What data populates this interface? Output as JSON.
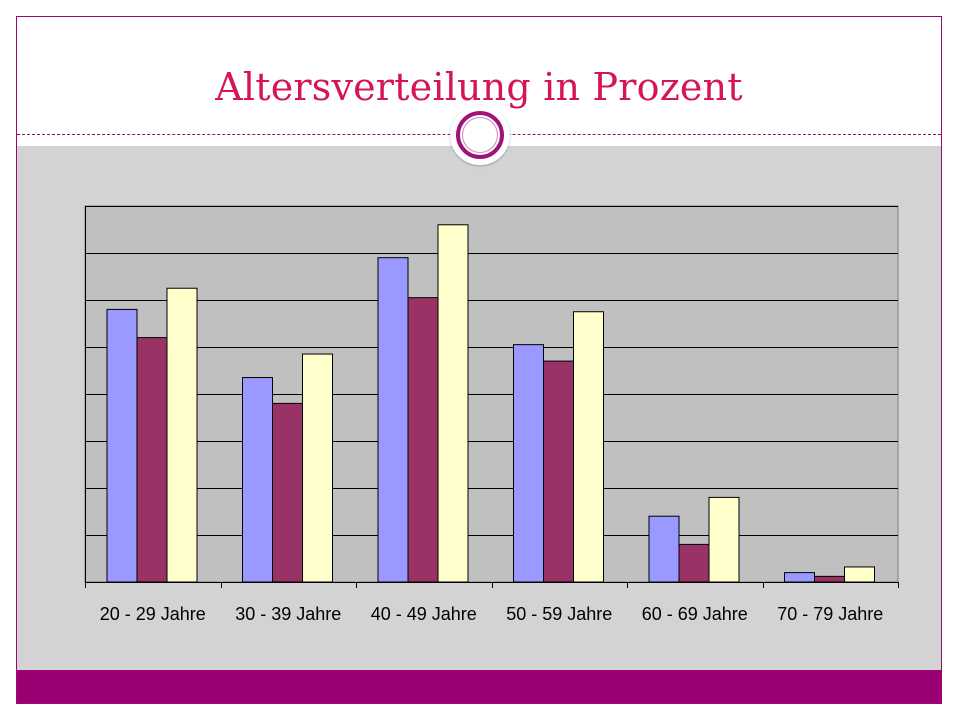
{
  "slide": {
    "title": "Altersverteilung in Prozent",
    "accent_color": "#9b0072",
    "title_color": "#d6145a"
  },
  "chart_data": {
    "type": "bar",
    "title": "",
    "xlabel": "",
    "ylabel": "",
    "categories": [
      "20 - 29 Jahre",
      "30 - 39 Jahre",
      "40 - 49 Jahre",
      "50 - 59 Jahre",
      "60 - 69 Jahre",
      "70 - 79 Jahre"
    ],
    "series": [
      {
        "color": "#9999ff",
        "values": [
          5.8,
          4.35,
          6.9,
          5.05,
          1.4,
          0.2
        ]
      },
      {
        "color": "#993366",
        "values": [
          5.2,
          3.8,
          6.05,
          4.7,
          0.8,
          0.12
        ]
      },
      {
        "color": "#ffffcc",
        "values": [
          6.25,
          4.85,
          7.6,
          5.75,
          1.8,
          0.32
        ]
      }
    ],
    "ylim": [
      0,
      8
    ],
    "gridlines": 8,
    "grid": true,
    "legend": "none",
    "plot_background": "#c0c0c0"
  }
}
